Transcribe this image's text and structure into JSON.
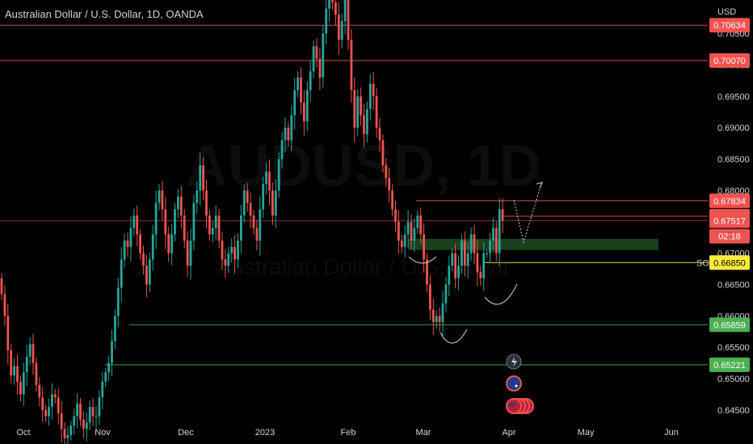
{
  "title": "Australian Dollar / U.S. Dollar, 1D, OANDA",
  "currency": "USD",
  "watermark": {
    "symbol": "AUDUSD, 1D",
    "name": "Australian Dollar / U.S. Dollar"
  },
  "colors": {
    "up": "#26a69a",
    "down": "#ef5350",
    "resistance": "#ef5350",
    "support": "#4caf50",
    "entry": "#ffeb3b",
    "zone": "#1e4620"
  },
  "price_axis": {
    "min": 0.6425,
    "max": 0.7125,
    "ticks": [
      "0.64500",
      "0.65000",
      "0.65500",
      "0.66000",
      "0.66500",
      "0.67000",
      "0.67500",
      "0.68000",
      "0.68500",
      "0.69000",
      "0.69500",
      "0.70000",
      "0.70500"
    ]
  },
  "time_axis": {
    "labels": [
      "Oct",
      "Nov",
      "Dec",
      "2023",
      "Feb",
      "Mar",
      "Apr",
      "May",
      "Jun"
    ]
  },
  "price_tags": [
    {
      "value": "0.70634",
      "price": 0.70634,
      "color": "#ef5350"
    },
    {
      "value": "0.70070",
      "price": 0.7007,
      "color": "#ef5350"
    },
    {
      "value": "0.67834",
      "price": 0.67834,
      "color": "#ef5350"
    },
    {
      "value": "0.67589",
      "price": 0.67589,
      "color": "#ef5350"
    },
    {
      "value": "0.67517",
      "price": 0.67517,
      "color": "#ef5350"
    },
    {
      "value": "02:18",
      "price": 0.6727,
      "color": "#ef5350"
    },
    {
      "value": "0.66850",
      "price": 0.6685,
      "color": "#ffeb3b"
    },
    {
      "value": "0.65859",
      "price": 0.65859,
      "color": "#4caf50"
    },
    {
      "value": "0.65221",
      "price": 0.65221,
      "color": "#4caf50"
    }
  ],
  "annotations": {
    "entry_label": "SO"
  },
  "chart_data": {
    "type": "candlestick",
    "title": "Australian Dollar / U.S. Dollar, 1D, OANDA",
    "y_unit": "USD",
    "ylim": [
      0.6425,
      0.7125
    ],
    "x_labels": [
      "Oct",
      "Nov",
      "Dec",
      "2023",
      "Feb",
      "Mar",
      "Apr",
      "May",
      "Jun"
    ],
    "horizontal_levels": [
      0.70634,
      0.7007,
      0.67834,
      0.67589,
      0.67517,
      0.6685,
      0.65859,
      0.65221
    ],
    "demand_zone": [
      0.6705,
      0.6723
    ],
    "close": [
      0.6635,
      0.66,
      0.6545,
      0.6505,
      0.652,
      0.6495,
      0.6475,
      0.651,
      0.6535,
      0.6555,
      0.6525,
      0.649,
      0.647,
      0.645,
      0.644,
      0.6455,
      0.6475,
      0.647,
      0.6445,
      0.642,
      0.6405,
      0.641,
      0.6425,
      0.644,
      0.646,
      0.6435,
      0.642,
      0.643,
      0.6455,
      0.644,
      0.644,
      0.647,
      0.6495,
      0.651,
      0.6525,
      0.656,
      0.66,
      0.6645,
      0.669,
      0.672,
      0.671,
      0.674,
      0.676,
      0.673,
      0.67,
      0.668,
      0.665,
      0.669,
      0.673,
      0.678,
      0.68,
      0.677,
      0.673,
      0.67,
      0.673,
      0.677,
      0.679,
      0.676,
      0.672,
      0.668,
      0.672,
      0.678,
      0.68,
      0.684,
      0.68,
      0.676,
      0.673,
      0.674,
      0.676,
      0.672,
      0.669,
      0.668,
      0.67,
      0.671,
      0.669,
      0.672,
      0.676,
      0.68,
      0.678,
      0.676,
      0.674,
      0.672,
      0.677,
      0.681,
      0.683,
      0.68,
      0.676,
      0.68,
      0.685,
      0.688,
      0.69,
      0.688,
      0.692,
      0.696,
      0.698,
      0.694,
      0.691,
      0.696,
      0.699,
      0.703,
      0.701,
      0.698,
      0.705,
      0.709,
      0.712,
      0.71,
      0.708,
      0.704,
      0.707,
      0.712,
      0.704,
      0.696,
      0.69,
      0.695,
      0.692,
      0.689,
      0.693,
      0.697,
      0.695,
      0.69,
      0.688,
      0.684,
      0.682,
      0.68,
      0.677,
      0.675,
      0.672,
      0.671,
      0.673,
      0.675,
      0.672,
      0.674,
      0.676,
      0.673,
      0.669,
      0.665,
      0.661,
      0.659,
      0.66,
      0.659,
      0.662,
      0.665,
      0.668,
      0.67,
      0.666,
      0.668,
      0.672,
      0.668,
      0.67,
      0.673,
      0.67,
      0.667,
      0.666,
      0.67,
      0.67,
      0.672,
      0.674,
      0.67,
      0.677,
      0.6752
    ]
  }
}
